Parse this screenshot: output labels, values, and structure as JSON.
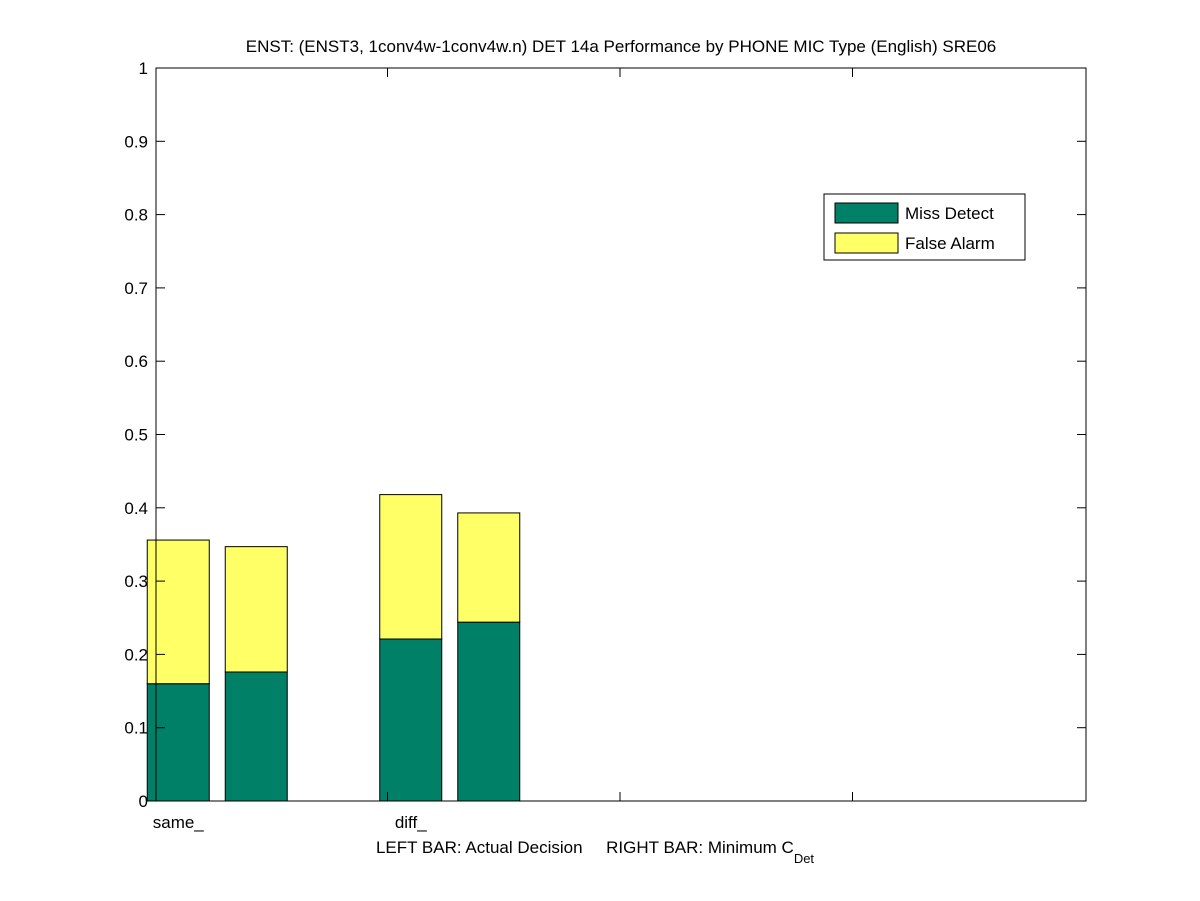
{
  "chart_data": {
    "type": "bar",
    "stacked": true,
    "title": "ENST: (ENST3, 1conv4w-1conv4w.n) DET 14a Performance by PHONE MIC Type (English) SRE06",
    "xlabel_main": "LEFT BAR: Actual Decision     RIGHT BAR: Minimum C",
    "xlabel_sub": "Det",
    "ylabel": "",
    "ylim": [
      0,
      1
    ],
    "yticks": [
      "0",
      "0.1",
      "0.2",
      "0.3",
      "0.4",
      "0.5",
      "0.6",
      "0.7",
      "0.8",
      "0.9",
      "1"
    ],
    "categories": [
      "same_",
      "diff_"
    ],
    "bars_per_category": [
      "Actual Decision",
      "Minimum C_Det"
    ],
    "series": [
      {
        "key": "miss",
        "name": "Miss Detect",
        "color": "#008066",
        "values": [
          [
            0.16,
            0.176
          ],
          [
            0.221,
            0.244
          ]
        ]
      },
      {
        "key": "fa",
        "name": "False Alarm",
        "color": "#ffff66",
        "values": [
          [
            0.196,
            0.171
          ],
          [
            0.197,
            0.149
          ]
        ]
      }
    ],
    "legend_position": "upper-right",
    "grid": false
  }
}
